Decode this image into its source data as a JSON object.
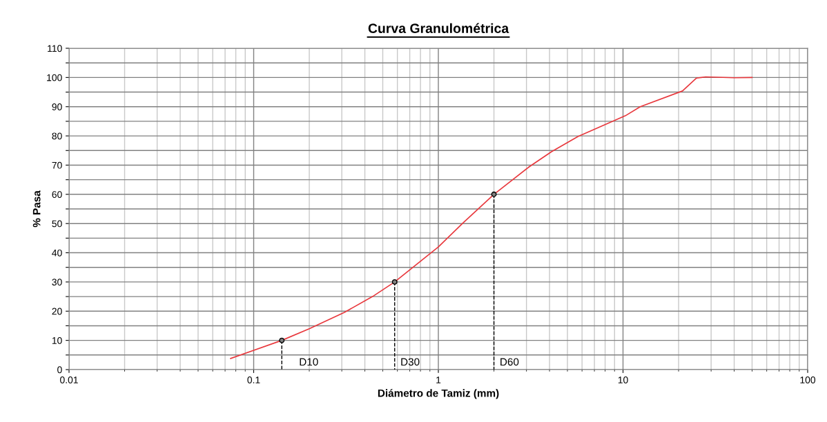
{
  "chart_data": {
    "type": "line",
    "title": "Curva Granulométrica",
    "xlabel": "Diámetro de Tamiz (mm)",
    "ylabel": "% Pasa",
    "log": "x",
    "xlim": [
      0.01,
      100
    ],
    "xticks": [
      0.01,
      0.1,
      1,
      10,
      100
    ],
    "ylim": [
      0,
      110
    ],
    "yticks": [
      0,
      {
        "value": 5,
        "label": null
      },
      10,
      {
        "value": 15,
        "label": null
      },
      20,
      {
        "value": 25,
        "label": null
      },
      30,
      {
        "value": 35,
        "label": null
      },
      40,
      {
        "value": 45,
        "label": null
      },
      50,
      {
        "value": 55,
        "label": null
      },
      60,
      {
        "value": 65,
        "label": null
      },
      70,
      {
        "value": 75,
        "label": null
      },
      80,
      {
        "value": 85,
        "label": null
      },
      90,
      {
        "value": 95,
        "label": null
      },
      100,
      {
        "value": 105,
        "label": null
      },
      110
    ],
    "grid": true,
    "marker": "none",
    "line_style": "solid",
    "series": [
      {
        "color": "#e8383d",
        "x": [
          0.075,
          0.142,
          0.2,
          0.31,
          0.44,
          0.58,
          1,
          1.35,
          2,
          3.1,
          4.1,
          5.7,
          10.3,
          12.4,
          21,
          25,
          28,
          40,
          50
        ],
        "values": [
          3.8,
          10,
          14,
          19.6,
          25,
          30,
          42,
          50,
          60,
          69.4,
          74.6,
          79.8,
          86.9,
          90,
          95.4,
          99.8,
          100.2,
          99.9,
          100
        ]
      },
      {
        "type": "scatter",
        "color": "#808080",
        "marker": "circle",
        "x": [
          0.142,
          0.58,
          2
        ],
        "values": [
          10,
          30,
          60
        ]
      },
      {
        "type": "line",
        "color": "#000000",
        "line_style": "dashed",
        "x": [
          0.142,
          0.142
        ],
        "values": [
          10,
          0
        ]
      },
      {
        "type": "line",
        "color": "#000000",
        "line_style": "dashed",
        "x": [
          0.58,
          0.58
        ],
        "values": [
          30,
          0
        ]
      },
      {
        "type": "line",
        "color": "#000000",
        "line_style": "dashed",
        "x": [
          2,
          2
        ],
        "values": [
          60,
          0
        ]
      }
    ],
    "annotations": [
      "D10",
      "D30",
      "D60"
    ]
  }
}
